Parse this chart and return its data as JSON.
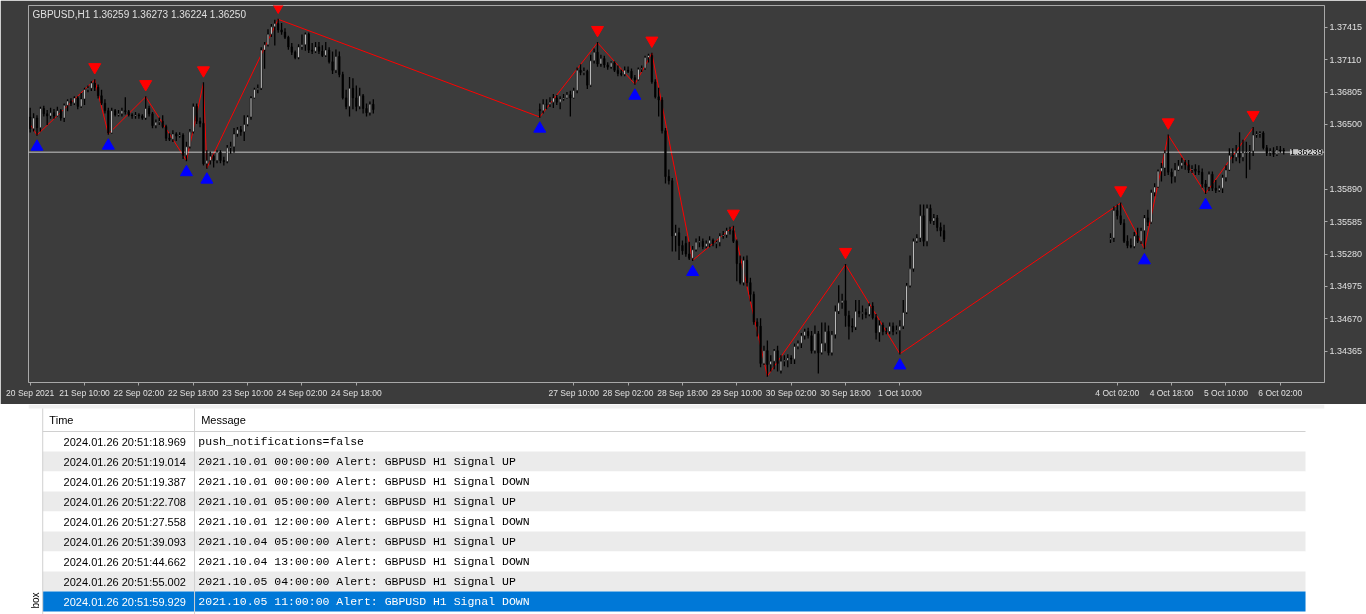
{
  "chart_data": [
    {
      "type": "candlestick",
      "title": "GBPUSD,H1 1.36259 1.36273 1.36224 1.36250",
      "x": [
        "2021-09-20T18:00",
        "2021-09-20T19:00",
        "2021-09-20T20:00",
        "2021-09-20T21:00",
        "2021-09-20T22:00",
        "2021-09-20T23:00",
        "2021-09-21T00:00",
        "2021-09-21T01:00",
        "2021-09-21T02:00",
        "2021-09-21T03:00",
        "2021-09-21T04:00",
        "2021-09-21T05:00",
        "2021-09-21T06:00",
        "2021-09-21T07:00",
        "2021-09-21T08:00",
        "2021-09-21T09:00",
        "2021-09-21T10:00",
        "2021-09-21T11:00",
        "2021-09-21T12:00",
        "2021-09-21T13:00",
        "2021-09-21T14:00",
        "2021-09-21T15:00",
        "2021-09-21T16:00",
        "2021-09-21T17:00",
        "2021-09-21T18:00",
        "2021-09-21T19:00",
        "2021-09-21T20:00",
        "2021-09-21T21:00",
        "2021-09-21T22:00",
        "2021-09-21T23:00",
        "2021-09-22T00:00",
        "2021-09-22T01:00",
        "2021-09-22T02:00",
        "2021-09-22T03:00",
        "2021-09-22T04:00",
        "2021-09-22T05:00",
        "2021-09-22T06:00",
        "2021-09-22T07:00",
        "2021-09-22T08:00",
        "2021-09-22T09:00",
        "2021-09-22T10:00",
        "2021-09-22T11:00",
        "2021-09-22T12:00",
        "2021-09-22T13:00",
        "2021-09-22T14:00",
        "2021-09-22T15:00",
        "2021-09-22T16:00",
        "2021-09-22T17:00",
        "2021-09-22T18:00",
        "2021-09-22T19:00",
        "2021-09-22T20:00",
        "2021-09-22T21:00",
        "2021-09-22T22:00",
        "2021-09-22T23:00",
        "2021-09-23T00:00",
        "2021-09-23T01:00",
        "2021-09-23T02:00",
        "2021-09-23T03:00",
        "2021-09-23T04:00",
        "2021-09-23T05:00",
        "2021-09-23T06:00",
        "2021-09-23T07:00",
        "2021-09-23T08:00",
        "2021-09-23T09:00",
        "2021-09-23T10:00",
        "2021-09-23T11:00",
        "2021-09-23T12:00",
        "2021-09-23T13:00",
        "2021-09-23T14:00",
        "2021-09-23T15:00",
        "2021-09-23T16:00",
        "2021-09-23T17:00",
        "2021-09-23T18:00",
        "2021-09-23T19:00",
        "2021-09-23T20:00",
        "2021-09-23T21:00",
        "2021-09-23T22:00",
        "2021-09-23T23:00",
        "2021-09-24T00:00",
        "2021-09-24T01:00",
        "2021-09-24T02:00",
        "2021-09-24T03:00",
        "2021-09-24T04:00",
        "2021-09-24T05:00",
        "2021-09-24T06:00",
        "2021-09-24T07:00",
        "2021-09-24T08:00",
        "2021-09-24T09:00",
        "2021-09-24T10:00",
        "2021-09-24T11:00",
        "2021-09-24T12:00",
        "2021-09-24T13:00",
        "2021-09-24T14:00",
        "2021-09-24T15:00",
        "2021-09-24T16:00",
        "2021-09-24T17:00",
        "2021-09-24T18:00",
        "2021-09-24T19:00",
        "2021-09-24T20:00",
        "2021-09-24T21:00",
        "2021-09-24T22:00",
        "2021-09-24T23:00",
        "2021-09-27T00:00",
        "2021-09-27T01:00",
        "2021-09-27T02:00",
        "2021-09-27T03:00",
        "2021-09-27T04:00",
        "2021-09-27T05:00",
        "2021-09-27T06:00",
        "2021-09-27T07:00",
        "2021-09-27T08:00",
        "2021-09-27T09:00",
        "2021-09-27T10:00",
        "2021-09-27T11:00",
        "2021-09-27T12:00",
        "2021-09-27T13:00",
        "2021-09-27T14:00",
        "2021-09-27T15:00",
        "2021-09-27T16:00",
        "2021-09-27T17:00",
        "2021-09-27T18:00",
        "2021-09-27T19:00",
        "2021-09-27T20:00",
        "2021-09-27T21:00",
        "2021-09-27T22:00",
        "2021-09-27T23:00",
        "2021-09-28T00:00",
        "2021-09-28T01:00",
        "2021-09-28T02:00",
        "2021-09-28T03:00",
        "2021-09-28T04:00",
        "2021-09-28T05:00",
        "2021-09-28T06:00",
        "2021-09-28T07:00",
        "2021-09-28T08:00",
        "2021-09-28T09:00",
        "2021-09-28T10:00",
        "2021-09-28T11:00",
        "2021-09-28T12:00",
        "2021-09-28T13:00",
        "2021-09-28T14:00",
        "2021-09-28T15:00",
        "2021-09-28T16:00",
        "2021-09-28T17:00",
        "2021-09-28T18:00",
        "2021-09-28T19:00",
        "2021-09-28T20:00",
        "2021-09-28T21:00",
        "2021-09-28T22:00",
        "2021-09-28T23:00",
        "2021-09-29T00:00",
        "2021-09-29T01:00",
        "2021-09-29T02:00",
        "2021-09-29T03:00",
        "2021-09-29T04:00",
        "2021-09-29T05:00",
        "2021-09-29T06:00",
        "2021-09-29T07:00",
        "2021-09-29T08:00",
        "2021-09-29T09:00",
        "2021-09-29T10:00",
        "2021-09-29T11:00",
        "2021-09-29T12:00",
        "2021-09-29T13:00",
        "2021-09-29T14:00",
        "2021-09-29T15:00",
        "2021-09-29T16:00",
        "2021-09-29T17:00",
        "2021-09-29T18:00",
        "2021-09-29T19:00",
        "2021-09-29T20:00",
        "2021-09-29T21:00",
        "2021-09-29T22:00",
        "2021-09-29T23:00",
        "2021-09-30T00:00",
        "2021-09-30T01:00",
        "2021-09-30T02:00",
        "2021-09-30T03:00",
        "2021-09-30T04:00",
        "2021-09-30T05:00",
        "2021-09-30T06:00",
        "2021-09-30T07:00",
        "2021-09-30T08:00",
        "2021-09-30T09:00",
        "2021-09-30T10:00",
        "2021-09-30T11:00",
        "2021-09-30T12:00",
        "2021-09-30T13:00",
        "2021-09-30T14:00",
        "2021-09-30T15:00",
        "2021-09-30T16:00",
        "2021-09-30T17:00",
        "2021-09-30T18:00",
        "2021-09-30T19:00",
        "2021-09-30T20:00",
        "2021-09-30T21:00",
        "2021-09-30T22:00",
        "2021-09-30T23:00",
        "2021-10-01T00:00",
        "2021-10-01T01:00",
        "2021-10-01T02:00",
        "2021-10-01T03:00",
        "2021-10-01T04:00",
        "2021-10-01T05:00",
        "2021-10-01T06:00",
        "2021-10-01T07:00",
        "2021-10-01T08:00",
        "2021-10-01T09:00",
        "2021-10-01T10:00",
        "2021-10-01T11:00",
        "2021-10-01T12:00",
        "2021-10-01T13:00",
        "2021-10-01T14:00",
        "2021-10-01T15:00",
        "2021-10-01T16:00",
        "2021-10-01T17:00",
        "2021-10-01T18:00",
        "2021-10-01T19:00",
        "2021-10-01T20:00",
        "2021-10-01T21:00",
        "2021-10-01T22:00",
        "2021-10-01T23:00",
        "2021-10-04T00:00",
        "2021-10-04T01:00",
        "2021-10-04T02:00",
        "2021-10-04T03:00",
        "2021-10-04T04:00",
        "2021-10-04T05:00",
        "2021-10-04T06:00",
        "2021-10-04T07:00",
        "2021-10-04T08:00",
        "2021-10-04T09:00",
        "2021-10-04T10:00",
        "2021-10-04T11:00",
        "2021-10-04T12:00",
        "2021-10-04T13:00",
        "2021-10-04T14:00",
        "2021-10-04T15:00",
        "2021-10-04T16:00",
        "2021-10-04T17:00",
        "2021-10-04T18:00",
        "2021-10-04T19:00",
        "2021-10-04T20:00",
        "2021-10-04T21:00",
        "2021-10-04T22:00",
        "2021-10-04T23:00",
        "2021-10-05T00:00",
        "2021-10-05T01:00",
        "2021-10-05T02:00",
        "2021-10-05T03:00",
        "2021-10-05T04:00",
        "2021-10-05T05:00",
        "2021-10-05T06:00",
        "2021-10-05T07:00",
        "2021-10-05T08:00",
        "2021-10-05T09:00",
        "2021-10-05T10:00",
        "2021-10-05T11:00",
        "2021-10-05T12:00",
        "2021-10-05T13:00",
        "2021-10-05T14:00",
        "2021-10-05T15:00",
        "2021-10-05T16:00",
        "2021-10-05T17:00",
        "2021-10-05T18:00",
        "2021-10-05T19:00",
        "2021-10-05T20:00",
        "2021-10-05T21:00",
        "2021-10-05T22:00",
        "2021-10-05T23:00",
        "2021-10-06T00:00",
        "2021-10-06T01:00",
        "2021-10-06T02:00",
        "2021-10-06T03:00"
      ],
      "ohlc": [
        [
          1.3657,
          1.3665,
          1.3643,
          1.3646
        ],
        [
          1.3646,
          1.366,
          1.3644,
          1.3656
        ],
        [
          1.3656,
          1.3658,
          1.364,
          1.3647
        ],
        [
          1.3647,
          1.3666,
          1.3644,
          1.3665
        ],
        [
          1.3665,
          1.3667,
          1.3658,
          1.366
        ],
        [
          1.366,
          1.3663,
          1.365,
          1.3658
        ],
        [
          1.3658,
          1.3665,
          1.3656,
          1.3661
        ],
        [
          1.3661,
          1.3664,
          1.3656,
          1.3658
        ],
        [
          1.3658,
          1.3666,
          1.3658,
          1.3663
        ],
        [
          1.3663,
          1.3664,
          1.3654,
          1.3656
        ],
        [
          1.3656,
          1.3669,
          1.3653,
          1.3668
        ],
        [
          1.3668,
          1.3673,
          1.3663,
          1.3672
        ],
        [
          1.3672,
          1.3674,
          1.3668,
          1.367
        ],
        [
          1.367,
          1.3676,
          1.3669,
          1.3675
        ],
        [
          1.3675,
          1.3676,
          1.3665,
          1.3667
        ],
        [
          1.3667,
          1.3679,
          1.3666,
          1.3674
        ],
        [
          1.3674,
          1.3684,
          1.3669,
          1.3683
        ],
        [
          1.3683,
          1.3686,
          1.3681,
          1.3684
        ],
        [
          1.3684,
          1.369,
          1.3682,
          1.3689
        ],
        [
          1.3689,
          1.3692,
          1.3682,
          1.3685
        ],
        [
          1.3685,
          1.3687,
          1.3675,
          1.3677
        ],
        [
          1.3677,
          1.3682,
          1.3669,
          1.367
        ],
        [
          1.367,
          1.3673,
          1.3661,
          1.3663
        ],
        [
          1.3663,
          1.3665,
          1.3641,
          1.3642
        ],
        [
          1.3642,
          1.3665,
          1.3642,
          1.3663
        ],
        [
          1.3663,
          1.3664,
          1.3658,
          1.3659
        ],
        [
          1.3659,
          1.3663,
          1.3658,
          1.366
        ],
        [
          1.366,
          1.3665,
          1.3658,
          1.3663
        ],
        [
          1.3663,
          1.3675,
          1.366,
          1.3662
        ],
        [
          1.3662,
          1.3663,
          1.3658,
          1.3659
        ],
        [
          1.3659,
          1.366,
          1.3656,
          1.3658
        ],
        [
          1.3658,
          1.3661,
          1.3656,
          1.3659
        ],
        [
          1.3659,
          1.366,
          1.3656,
          1.3658
        ],
        [
          1.3658,
          1.3659,
          1.3655,
          1.3656
        ],
        [
          1.3656,
          1.3676,
          1.3655,
          1.3665
        ],
        [
          1.3665,
          1.3667,
          1.3658,
          1.366
        ],
        [
          1.366,
          1.3661,
          1.3647,
          1.3649
        ],
        [
          1.3649,
          1.3654,
          1.3647,
          1.3652
        ],
        [
          1.3652,
          1.3656,
          1.365,
          1.3653
        ],
        [
          1.3653,
          1.3658,
          1.3647,
          1.3648
        ],
        [
          1.3648,
          1.3649,
          1.3635,
          1.3637
        ],
        [
          1.3637,
          1.3641,
          1.3635,
          1.3636
        ],
        [
          1.3636,
          1.3644,
          1.3634,
          1.3641
        ],
        [
          1.3641,
          1.3642,
          1.3635,
          1.3639
        ],
        [
          1.3639,
          1.3642,
          1.3638,
          1.364
        ],
        [
          1.364,
          1.3641,
          1.3618,
          1.3621
        ],
        [
          1.3621,
          1.3633,
          1.3616,
          1.3629
        ],
        [
          1.3629,
          1.3645,
          1.3628,
          1.3643
        ],
        [
          1.3643,
          1.3669,
          1.3642,
          1.3667
        ],
        [
          1.3667,
          1.3669,
          1.3651,
          1.3653
        ],
        [
          1.3653,
          1.3656,
          1.3648,
          1.3651
        ],
        [
          1.3651,
          1.3689,
          1.3612,
          1.3613
        ],
        [
          1.3613,
          1.3625,
          1.3609,
          1.3616
        ],
        [
          1.3616,
          1.3624,
          1.3613,
          1.362
        ],
        [
          1.362,
          1.3621,
          1.361,
          1.3616
        ],
        [
          1.3616,
          1.3625,
          1.3614,
          1.3624
        ],
        [
          1.3624,
          1.3625,
          1.3614,
          1.3616
        ],
        [
          1.3616,
          1.3619,
          1.3612,
          1.3615
        ],
        [
          1.3615,
          1.363,
          1.3614,
          1.3628
        ],
        [
          1.3628,
          1.3633,
          1.3623,
          1.3629
        ],
        [
          1.3629,
          1.3646,
          1.3624,
          1.3641
        ],
        [
          1.3641,
          1.3647,
          1.3639,
          1.3645
        ],
        [
          1.3645,
          1.3648,
          1.364,
          1.3643
        ],
        [
          1.3643,
          1.3658,
          1.3635,
          1.365
        ],
        [
          1.365,
          1.3658,
          1.3649,
          1.3657
        ],
        [
          1.3657,
          1.3676,
          1.3655,
          1.3675
        ],
        [
          1.3675,
          1.3684,
          1.3675,
          1.3683
        ],
        [
          1.3683,
          1.3687,
          1.368,
          1.3684
        ],
        [
          1.3684,
          1.3722,
          1.3683,
          1.372
        ],
        [
          1.372,
          1.3727,
          1.3703,
          1.3725
        ],
        [
          1.3725,
          1.3739,
          1.3724,
          1.3735
        ],
        [
          1.3735,
          1.3744,
          1.3733,
          1.3742
        ],
        [
          1.3742,
          1.3748,
          1.3725,
          1.3745
        ],
        [
          1.3745,
          1.3749,
          1.3737,
          1.3739
        ],
        [
          1.3739,
          1.3745,
          1.3735,
          1.3737
        ],
        [
          1.3737,
          1.374,
          1.3731,
          1.3732
        ],
        [
          1.3732,
          1.3733,
          1.3721,
          1.3723
        ],
        [
          1.3723,
          1.3726,
          1.3716,
          1.3718
        ],
        [
          1.3718,
          1.3719,
          1.3712,
          1.3713
        ],
        [
          1.3713,
          1.3725,
          1.3712,
          1.3723
        ],
        [
          1.3723,
          1.3734,
          1.3721,
          1.3725
        ],
        [
          1.3725,
          1.3736,
          1.372,
          1.3735
        ],
        [
          1.3735,
          1.3736,
          1.3718,
          1.372
        ],
        [
          1.372,
          1.3726,
          1.3717,
          1.3719
        ],
        [
          1.3719,
          1.3727,
          1.3718,
          1.3723
        ],
        [
          1.3723,
          1.3727,
          1.3717,
          1.3719
        ],
        [
          1.3719,
          1.3724,
          1.3714,
          1.3715
        ],
        [
          1.3715,
          1.3727,
          1.3714,
          1.372
        ],
        [
          1.372,
          1.3722,
          1.3708,
          1.3709
        ],
        [
          1.3709,
          1.3718,
          1.3698,
          1.3701
        ],
        [
          1.3701,
          1.372,
          1.3699,
          1.3714
        ],
        [
          1.3714,
          1.3718,
          1.3695,
          1.3697
        ],
        [
          1.3697,
          1.3699,
          1.3674,
          1.3675
        ],
        [
          1.3675,
          1.3682,
          1.3665,
          1.3667
        ],
        [
          1.3667,
          1.3694,
          1.3658,
          1.3684
        ],
        [
          1.3684,
          1.3693,
          1.3665,
          1.3675
        ],
        [
          1.3675,
          1.3686,
          1.3663,
          1.3667
        ],
        [
          1.3667,
          1.3684,
          1.3665,
          1.3677
        ],
        [
          1.3677,
          1.3678,
          1.3661,
          1.3665
        ],
        [
          1.3665,
          1.3669,
          1.3658,
          1.3661
        ],
        [
          1.3661,
          1.3671,
          1.3659,
          1.3669
        ],
        [
          1.3669,
          1.3673,
          1.3661,
          1.3664
        ],
        [
          1.3664,
          1.3669,
          1.3657,
          1.3663
        ],
        [
          1.3663,
          1.3673,
          1.3661,
          1.3669
        ],
        [
          1.3669,
          1.3673,
          1.3665,
          1.3669
        ],
        [
          1.3669,
          1.3675,
          1.3667,
          1.3671
        ],
        [
          1.3671,
          1.3678,
          1.3666,
          1.3675
        ],
        [
          1.3675,
          1.3677,
          1.3669,
          1.3671
        ],
        [
          1.3671,
          1.3676,
          1.3665,
          1.3674
        ],
        [
          1.3674,
          1.3678,
          1.3673,
          1.3675
        ],
        [
          1.3675,
          1.368,
          1.3675,
          1.3678
        ],
        [
          1.3678,
          1.3681,
          1.3658,
          1.3675
        ],
        [
          1.3675,
          1.3684,
          1.3675,
          1.3682
        ],
        [
          1.3682,
          1.3703,
          1.368,
          1.3701
        ],
        [
          1.3701,
          1.3706,
          1.3697,
          1.3699
        ],
        [
          1.3699,
          1.3703,
          1.3697,
          1.37
        ],
        [
          1.37,
          1.3701,
          1.3684,
          1.3687
        ],
        [
          1.3687,
          1.3715,
          1.3686,
          1.371
        ],
        [
          1.371,
          1.3721,
          1.3708,
          1.3718
        ],
        [
          1.3718,
          1.3727,
          1.3705,
          1.3707
        ],
        [
          1.3707,
          1.3715,
          1.3705,
          1.3712
        ],
        [
          1.3712,
          1.3714,
          1.3704,
          1.3706
        ],
        [
          1.3706,
          1.3708,
          1.3702,
          1.3704
        ],
        [
          1.3704,
          1.3709,
          1.3703,
          1.3708
        ],
        [
          1.3708,
          1.3709,
          1.37,
          1.3701
        ],
        [
          1.3701,
          1.3705,
          1.3696,
          1.3698
        ],
        [
          1.3698,
          1.3701,
          1.3696,
          1.3697
        ],
        [
          1.3697,
          1.3704,
          1.3696,
          1.3701
        ],
        [
          1.3701,
          1.3704,
          1.3699,
          1.37
        ],
        [
          1.37,
          1.3702,
          1.3693,
          1.3694
        ],
        [
          1.3694,
          1.3696,
          1.3688,
          1.3692
        ],
        [
          1.3692,
          1.3703,
          1.3692,
          1.3702
        ],
        [
          1.3702,
          1.3705,
          1.37,
          1.3703
        ],
        [
          1.3703,
          1.3714,
          1.3702,
          1.3713
        ],
        [
          1.3713,
          1.3716,
          1.3709,
          1.3715
        ],
        [
          1.3715,
          1.3717,
          1.3689,
          1.369
        ],
        [
          1.369,
          1.3692,
          1.3675,
          1.3676
        ],
        [
          1.3676,
          1.3684,
          1.3658,
          1.3673
        ],
        [
          1.3673,
          1.3675,
          1.3642,
          1.3644
        ],
        [
          1.3644,
          1.3646,
          1.3595,
          1.3601
        ],
        [
          1.3601,
          1.3607,
          1.3594,
          1.3597
        ],
        [
          1.3597,
          1.3599,
          1.3531,
          1.3545
        ],
        [
          1.3545,
          1.3555,
          1.3531,
          1.3548
        ],
        [
          1.3548,
          1.3552,
          1.3523,
          1.3536
        ],
        [
          1.3536,
          1.354,
          1.3528,
          1.3531
        ],
        [
          1.3538,
          1.3544,
          1.3526,
          1.3528
        ],
        [
          1.3528,
          1.3539,
          1.3523,
          1.3524
        ],
        [
          1.3524,
          1.3535,
          1.3522,
          1.3532
        ],
        [
          1.3532,
          1.3542,
          1.3531,
          1.3539
        ],
        [
          1.3539,
          1.3544,
          1.3535,
          1.354
        ],
        [
          1.354,
          1.3542,
          1.3533,
          1.3535
        ],
        [
          1.3535,
          1.354,
          1.3534,
          1.3538
        ],
        [
          1.3538,
          1.3544,
          1.3535,
          1.3541
        ],
        [
          1.3541,
          1.3542,
          1.3536,
          1.3538
        ],
        [
          1.3538,
          1.354,
          1.3534,
          1.3539
        ],
        [
          1.3539,
          1.3547,
          1.3536,
          1.3545
        ],
        [
          1.3545,
          1.3549,
          1.3543,
          1.3546
        ],
        [
          1.3546,
          1.3552,
          1.3544,
          1.355
        ],
        [
          1.355,
          1.3553,
          1.3547,
          1.355
        ],
        [
          1.355,
          1.3554,
          1.3539,
          1.354
        ],
        [
          1.354,
          1.3541,
          1.3503,
          1.3519
        ],
        [
          1.3519,
          1.3526,
          1.35,
          1.3501
        ],
        [
          1.3501,
          1.3525,
          1.3499,
          1.3522
        ],
        [
          1.3522,
          1.3526,
          1.3498,
          1.3501
        ],
        [
          1.3501,
          1.3505,
          1.3484,
          1.349
        ],
        [
          1.349,
          1.3492,
          1.3462,
          1.3464
        ],
        [
          1.3464,
          1.3467,
          1.3451,
          1.346
        ],
        [
          1.346,
          1.3467,
          1.3422,
          1.3425
        ],
        [
          1.3425,
          1.3441,
          1.3424,
          1.3437
        ],
        [
          1.3437,
          1.3446,
          1.3413,
          1.3424
        ],
        [
          1.3424,
          1.3432,
          1.3418,
          1.3427
        ],
        [
          1.3427,
          1.3438,
          1.342,
          1.3437
        ],
        [
          1.3437,
          1.3441,
          1.3418,
          1.3425
        ],
        [
          1.3418,
          1.3432,
          1.3416,
          1.3427
        ],
        [
          1.3427,
          1.3432,
          1.3423,
          1.3428
        ],
        [
          1.3428,
          1.3433,
          1.3422,
          1.343
        ],
        [
          1.343,
          1.3432,
          1.3425,
          1.3429
        ],
        [
          1.3429,
          1.3443,
          1.3425,
          1.3441
        ],
        [
          1.3441,
          1.3446,
          1.3439,
          1.3444
        ],
        [
          1.3444,
          1.3453,
          1.344,
          1.3451
        ],
        [
          1.3451,
          1.3457,
          1.3448,
          1.3455
        ],
        [
          1.3455,
          1.3458,
          1.3449,
          1.3451
        ],
        [
          1.3451,
          1.3455,
          1.3435,
          1.3437
        ],
        [
          1.3437,
          1.346,
          1.3435,
          1.3453
        ],
        [
          1.3453,
          1.3455,
          1.3416,
          1.3435
        ],
        [
          1.3435,
          1.3463,
          1.3434,
          1.3444
        ],
        [
          1.3444,
          1.3463,
          1.3437,
          1.3455
        ],
        [
          1.3455,
          1.346,
          1.3433,
          1.3435
        ],
        [
          1.3435,
          1.3455,
          1.3433,
          1.3452
        ],
        [
          1.3452,
          1.3479,
          1.3449,
          1.3474
        ],
        [
          1.3474,
          1.3498,
          1.3472,
          1.3482
        ],
        [
          1.3482,
          1.349,
          1.3477,
          1.3484
        ],
        [
          1.3484,
          1.3518,
          1.346,
          1.347
        ],
        [
          1.347,
          1.3474,
          1.3448,
          1.346
        ],
        [
          1.346,
          1.3467,
          1.3455,
          1.3459
        ],
        [
          1.3459,
          1.3484,
          1.3457,
          1.3474
        ],
        [
          1.3474,
          1.3484,
          1.3469,
          1.3472
        ],
        [
          1.3472,
          1.3479,
          1.3467,
          1.3473
        ],
        [
          1.3473,
          1.3476,
          1.3468,
          1.3471
        ],
        [
          1.3471,
          1.3481,
          1.347,
          1.3479
        ],
        [
          1.3479,
          1.3482,
          1.3467,
          1.3468
        ],
        [
          1.3468,
          1.3471,
          1.3448,
          1.3454
        ],
        [
          1.3454,
          1.3465,
          1.3446,
          1.3461
        ],
        [
          1.3461,
          1.3463,
          1.3452,
          1.3455
        ],
        [
          1.3455,
          1.3458,
          1.3453,
          1.3455
        ],
        [
          1.3455,
          1.3463,
          1.3453,
          1.346
        ],
        [
          1.346,
          1.3463,
          1.3452,
          1.3455
        ],
        [
          1.3455,
          1.346,
          1.3453,
          1.3456
        ],
        [
          1.3456,
          1.3465,
          1.3434,
          1.346
        ],
        [
          1.346,
          1.3484,
          1.3458,
          1.3473
        ],
        [
          1.3473,
          1.35,
          1.3472,
          1.3498
        ],
        [
          1.3498,
          1.3526,
          1.3497,
          1.3514
        ],
        [
          1.3514,
          1.3542,
          1.3512,
          1.354
        ],
        [
          1.354,
          1.3546,
          1.3539,
          1.3543
        ],
        [
          1.3543,
          1.3574,
          1.354,
          1.3564
        ],
        [
          1.3564,
          1.3574,
          1.3536,
          1.354
        ],
        [
          1.354,
          1.3574,
          1.3536,
          1.3571
        ],
        [
          1.3571,
          1.3574,
          1.3557,
          1.3559
        ],
        [
          1.3559,
          1.3565,
          1.3556,
          1.3562
        ],
        [
          1.3562,
          1.3564,
          1.355,
          1.3553
        ],
        [
          1.3553,
          1.3557,
          1.3545,
          1.355
        ],
        [
          1.355,
          1.3555,
          1.354,
          1.3542
        ],
        [
          1.3542,
          1.3547,
          1.3539,
          1.3543
        ],
        [
          1.3543,
          1.3572,
          1.354,
          1.3569
        ],
        [
          1.3569,
          1.3574,
          1.3561,
          1.3564
        ],
        [
          1.3564,
          1.3576,
          1.3556,
          1.3557
        ],
        [
          1.3557,
          1.356,
          1.3539,
          1.354
        ],
        [
          1.354,
          1.3545,
          1.3534,
          1.3536
        ],
        [
          1.3536,
          1.3542,
          1.3534,
          1.3535
        ],
        [
          1.3535,
          1.3548,
          1.3534,
          1.3545
        ],
        [
          1.3545,
          1.3552,
          1.3539,
          1.354
        ],
        [
          1.354,
          1.3552,
          1.3538,
          1.355
        ],
        [
          1.355,
          1.3564,
          1.3533,
          1.3562
        ],
        [
          1.3562,
          1.3569,
          1.3555,
          1.3558
        ],
        [
          1.3558,
          1.3588,
          1.3557,
          1.3586
        ],
        [
          1.3586,
          1.3594,
          1.3583,
          1.3591
        ],
        [
          1.3591,
          1.3607,
          1.3591,
          1.3606
        ],
        [
          1.3606,
          1.3613,
          1.3597,
          1.3609
        ],
        [
          1.3609,
          1.3625,
          1.3602,
          1.3623
        ],
        [
          1.3623,
          1.364,
          1.3603,
          1.3605
        ],
        [
          1.3605,
          1.3608,
          1.3595,
          1.3601
        ],
        [
          1.3601,
          1.3613,
          1.3596,
          1.3607
        ],
        [
          1.3607,
          1.3616,
          1.3607,
          1.3611
        ],
        [
          1.3611,
          1.3618,
          1.3609,
          1.3614
        ],
        [
          1.3614,
          1.3616,
          1.3608,
          1.3612
        ],
        [
          1.3612,
          1.3616,
          1.3605,
          1.3607
        ],
        [
          1.3607,
          1.3611,
          1.3605,
          1.3608
        ],
        [
          1.3608,
          1.3612,
          1.3603,
          1.3606
        ],
        [
          1.3606,
          1.3611,
          1.3603,
          1.3605
        ],
        [
          1.3605,
          1.3608,
          1.3591,
          1.3594
        ],
        [
          1.3594,
          1.3597,
          1.3585,
          1.3591
        ],
        [
          1.3591,
          1.3605,
          1.3588,
          1.3603
        ],
        [
          1.3603,
          1.3605,
          1.3588,
          1.359
        ],
        [
          1.359,
          1.3597,
          1.3586,
          1.3588
        ],
        [
          1.3588,
          1.3592,
          1.3587,
          1.359
        ],
        [
          1.359,
          1.3602,
          1.3586,
          1.36
        ],
        [
          1.36,
          1.3611,
          1.3597,
          1.3607
        ],
        [
          1.3607,
          1.3627,
          1.3607,
          1.3621
        ],
        [
          1.3621,
          1.3627,
          1.3614,
          1.3619
        ],
        [
          1.3619,
          1.363,
          1.3616,
          1.3623
        ],
        [
          1.3623,
          1.3642,
          1.3614,
          1.3619
        ],
        [
          1.3619,
          1.3635,
          1.3616,
          1.3623
        ],
        [
          1.3623,
          1.3633,
          1.36,
          1.3624
        ],
        [
          1.3624,
          1.363,
          1.3608,
          1.3625
        ],
        [
          1.3625,
          1.3647,
          1.3621,
          1.364
        ],
        [
          1.364,
          1.3643,
          1.3638,
          1.3641
        ],
        [
          1.3641,
          1.3643,
          1.3638,
          1.3642
        ],
        [
          1.3642,
          1.3643,
          1.3627,
          1.3628
        ],
        [
          1.3628,
          1.363,
          1.3621,
          1.3623
        ],
        [
          1.3623,
          1.3627,
          1.3621,
          1.3625
        ],
        [
          1.3625,
          1.3628,
          1.362,
          1.3622
        ],
        [
          1.3622,
          1.3629,
          1.3621,
          1.3626
        ],
        [
          1.3626,
          1.3629,
          1.3624,
          1.3625
        ],
        [
          1.36259,
          1.36273,
          1.36224,
          1.3625
        ]
      ],
      "series": [
        {
          "type": "line",
          "color": "#ff0000",
          "x": [
            "2021-09-20T18:00",
            "2021-09-20T20:00",
            "2021-09-21T13:00",
            "2021-09-21T17:00",
            "2021-09-22T04:00",
            "2021-09-22T16:00",
            "2021-09-22T21:00",
            "2021-09-22T22:00",
            "2021-09-23T19:00",
            "2021-09-27T00:00",
            "2021-09-27T17:00",
            "2021-09-28T04:00",
            "2021-09-28T09:00",
            "2021-09-28T21:00",
            "2021-09-29T09:00",
            "2021-09-29T19:00",
            "2021-09-30T18:00",
            "2021-10-01T10:00",
            "2021-10-04T03:00",
            "2021-10-04T10:00",
            "2021-10-04T17:00",
            "2021-10-05T04:00",
            "2021-10-05T18:00"
          ],
          "values": [
            1.365,
            1.364,
            1.3692,
            1.3641,
            1.3676,
            1.3616,
            1.3689,
            1.3609,
            1.3749,
            1.3657,
            1.3727,
            1.3688,
            1.3717,
            1.3522,
            1.3554,
            1.3413,
            1.3518,
            1.3434,
            1.3576,
            1.3533,
            1.364,
            1.3585,
            1.3647
          ]
        },
        {
          "type": "scatter",
          "color": "#ff0000",
          "marker": "triangle",
          "x": [
            "2021-09-21T13:00",
            "2021-09-22T04:00",
            "2021-09-22T21:00",
            "2021-09-23T19:00",
            "2021-09-27T17:00",
            "2021-09-28T09:00",
            "2021-09-29T09:00",
            "2021-09-30T18:00",
            "2021-10-04T03:00",
            "2021-10-04T17:00",
            "2021-10-05T18:00"
          ],
          "values": [
            1.3704,
            1.3688,
            1.3701,
            1.3761,
            1.3739,
            1.3729,
            1.3566,
            1.353,
            1.3588,
            1.3652,
            1.3659
          ]
        },
        {
          "type": "scatter",
          "color": "#0000ff",
          "marker": "triangle",
          "x": [
            "2021-09-20T20:00",
            "2021-09-21T17:00",
            "2021-09-22T16:00",
            "2021-09-22T22:00",
            "2021-09-27T00:00",
            "2021-09-28T04:00",
            "2021-09-28T21:00",
            "2021-10-01T10:00",
            "2021-10-04T10:00",
            "2021-10-05T04:00"
          ],
          "values": [
            1.3629,
            1.363,
            1.3605,
            1.3598,
            1.3646,
            1.3677,
            1.3511,
            1.3423,
            1.3522,
            1.3574
          ]
        }
      ],
      "xlim": [
        "2021-09-20T17:30",
        "2021-10-06T15:00"
      ],
      "xticks": [
        {
          "value": "2021-09-20T18:00",
          "label": "20 Sep 2021"
        },
        {
          "value": "2021-09-21T10:00",
          "label": "21 Sep 10:00"
        },
        {
          "value": "2021-09-22T02:00",
          "label": "22 Sep 02:00"
        },
        {
          "value": "2021-09-22T18:00",
          "label": "22 Sep 18:00"
        },
        {
          "value": "2021-09-23T10:00",
          "label": "23 Sep 10:00"
        },
        {
          "value": "2021-09-24T02:00",
          "label": "24 Sep 02:00"
        },
        {
          "value": "2021-09-24T18:00",
          "label": "24 Sep 18:00"
        },
        {
          "value": "2021-09-27T10:00",
          "label": "27 Sep 10:00"
        },
        {
          "value": "2021-09-28T02:00",
          "label": "28 Sep 02:00"
        },
        {
          "value": "2021-09-28T18:00",
          "label": "28 Sep 18:00"
        },
        {
          "value": "2021-09-29T10:00",
          "label": "29 Sep 10:00"
        },
        {
          "value": "2021-09-30T02:00",
          "label": "30 Sep 02:00"
        },
        {
          "value": "2021-09-30T18:00",
          "label": "30 Sep 18:00"
        },
        {
          "value": "2021-10-01T10:00",
          "label": "1 Oct 10:00"
        },
        {
          "value": "2021-10-04T02:00",
          "label": "4 Oct 02:00"
        },
        {
          "value": "2021-10-04T18:00",
          "label": "4 Oct 18:00"
        },
        {
          "value": "2021-10-05T10:00",
          "label": "5 Oct 10:00"
        },
        {
          "value": "2021-10-06T02:00",
          "label": "6 Oct 02:00"
        }
      ],
      "ylim": [
        1.3407,
        1.3762
      ],
      "yticks": [
        1.37415,
        {
          "value": 1.3711,
          "label": "1.37110"
        },
        1.36805,
        {
          "value": 1.365,
          "label": "1.36500"
        },
        {
          "value": 1.3589,
          "label": "1.35890"
        },
        1.35585,
        {
          "value": 1.3528,
          "label": "1.35280"
        },
        1.34975,
        {
          "value": 1.3467,
          "label": "1.34670"
        },
        1.34365
      ],
      "ref_lines": [
        {
          "axis": "y",
          "value": 1.36239,
          "label": "1.36239",
          "color": "#c8c8c8"
        }
      ]
    },
    {
      "type": "other",
      "ylabel": "box",
      "annotations": [
        "Time",
        "Message",
        "2024.01.26 20:51:18.969",
        "push_notifications=false",
        "2024.01.26 20:51:19.014",
        "2021.10.01 00:00:00   Alert: GBPUSD H1 Signal UP",
        "2024.01.26 20:51:19.387",
        "2021.10.01 00:00:00   Alert: GBPUSD H1 Signal DOWN",
        "2024.01.26 20:51:22.708",
        "2021.10.01 05:00:00   Alert: GBPUSD H1 Signal UP",
        "2024.01.26 20:51:27.558",
        "2021.10.01 12:00:00   Alert: GBPUSD H1 Signal DOWN",
        "2024.01.26 20:51:39.093",
        "2021.10.04 05:00:00   Alert: GBPUSD H1 Signal UP",
        "2024.01.26 20:51:44.662",
        "2021.10.04 13:00:00   Alert: GBPUSD H1 Signal DOWN",
        "2024.01.26 20:51:55.002",
        "2021.10.05 04:00:00   Alert: GBPUSD H1 Signal UP",
        "2024.01.26 20:51:59.929",
        "2021.10.05 11:00:00   Alert: GBPUSD H1 Signal DOWN"
      ]
    }
  ]
}
